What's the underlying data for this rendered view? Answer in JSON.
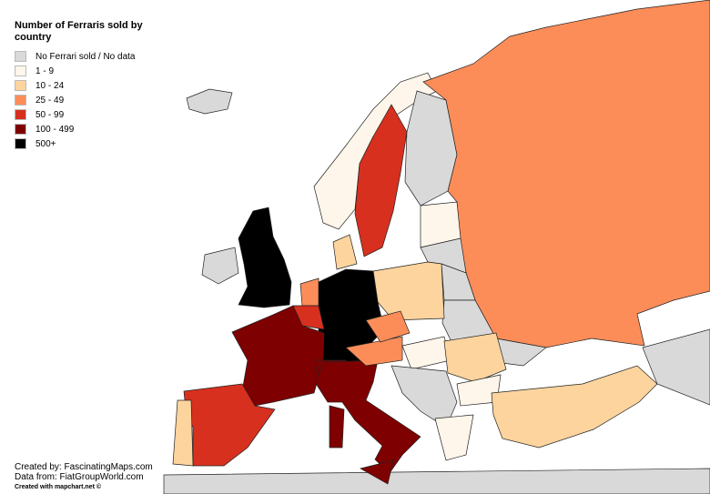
{
  "title": "Number of Ferraris sold by country",
  "legend": [
    {
      "label": "No Ferrari sold / No data",
      "color": "#d9d9d9"
    },
    {
      "label": "1 - 9",
      "color": "#fef6ea"
    },
    {
      "label": "10 - 24",
      "color": "#fdd49e"
    },
    {
      "label": "25 - 49",
      "color": "#fc8d59"
    },
    {
      "label": "50 - 99",
      "color": "#d7301f"
    },
    {
      "label": "100 - 499",
      "color": "#7f0000"
    },
    {
      "label": "500+",
      "color": "#000000"
    }
  ],
  "credits": [
    "Created by: FascinatingMaps.com",
    "Data from: FiatGroupWorld.com",
    "Created with mapchart.net ©"
  ]
}
